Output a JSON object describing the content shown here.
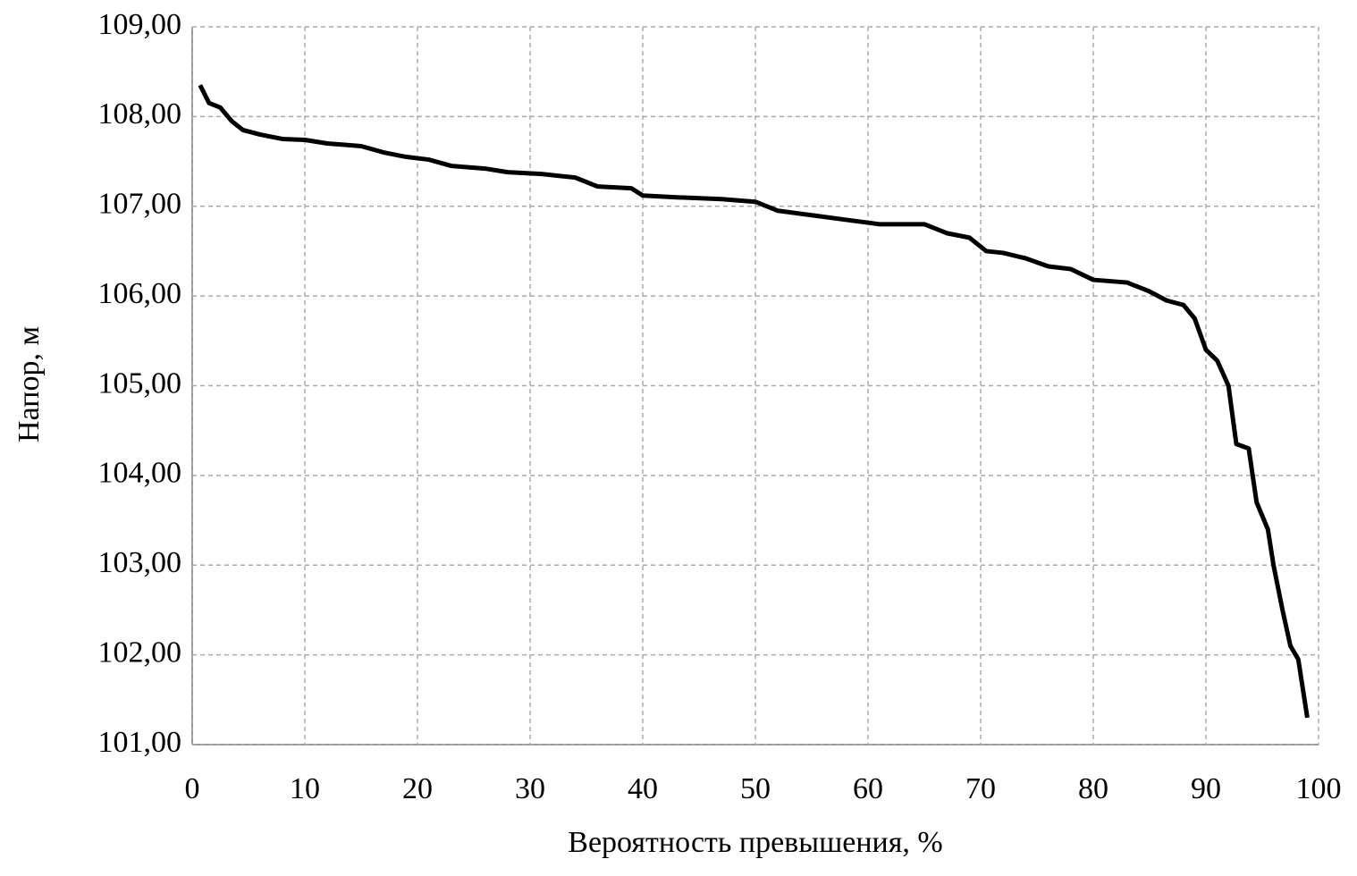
{
  "chart_data": {
    "type": "line",
    "xlabel": "Вероятность превышения, %",
    "ylabel": "Напор, м",
    "x": [
      0.7,
      1.5,
      2.5,
      3.5,
      4.5,
      6,
      8,
      10,
      12,
      15,
      17,
      19,
      21,
      23,
      26,
      28,
      31,
      34,
      36,
      39,
      40,
      43,
      47,
      50,
      52,
      55,
      58,
      61,
      65,
      67,
      69,
      70.5,
      72,
      74,
      76,
      78,
      80,
      83,
      85,
      86.5,
      88,
      89,
      90,
      91,
      92,
      92.7,
      93.8,
      94.5,
      95.5,
      96,
      96.8,
      97.5,
      98.2,
      99
    ],
    "series": [
      {
        "color": "#000000",
        "values": [
          108.35,
          108.15,
          108.1,
          107.95,
          107.85,
          107.8,
          107.75,
          107.74,
          107.7,
          107.67,
          107.6,
          107.55,
          107.52,
          107.45,
          107.42,
          107.38,
          107.36,
          107.32,
          107.22,
          107.2,
          107.12,
          107.1,
          107.08,
          107.05,
          106.95,
          106.9,
          106.85,
          106.8,
          106.8,
          106.7,
          106.65,
          106.5,
          106.48,
          106.42,
          106.33,
          106.3,
          106.18,
          106.15,
          106.05,
          105.95,
          105.9,
          105.75,
          105.4,
          105.28,
          105.0,
          104.35,
          104.3,
          103.7,
          103.4,
          103.0,
          102.5,
          102.1,
          101.95,
          101.3
        ]
      }
    ],
    "xlim": [
      0,
      100
    ],
    "xticks": [
      0,
      10,
      20,
      30,
      40,
      50,
      60,
      70,
      80,
      90,
      100
    ],
    "ylim": [
      101,
      109
    ],
    "yticks": [
      {
        "value": 101,
        "label": "101,00"
      },
      {
        "value": 102,
        "label": "102,00"
      },
      {
        "value": 103,
        "label": "103,00"
      },
      {
        "value": 104,
        "label": "104,00"
      },
      {
        "value": 105,
        "label": "105,00"
      },
      {
        "value": 106,
        "label": "106,00"
      },
      {
        "value": 107,
        "label": "107,00"
      },
      {
        "value": 108,
        "label": "108,00"
      },
      {
        "value": 109,
        "label": "109,00"
      }
    ],
    "grid": true
  }
}
